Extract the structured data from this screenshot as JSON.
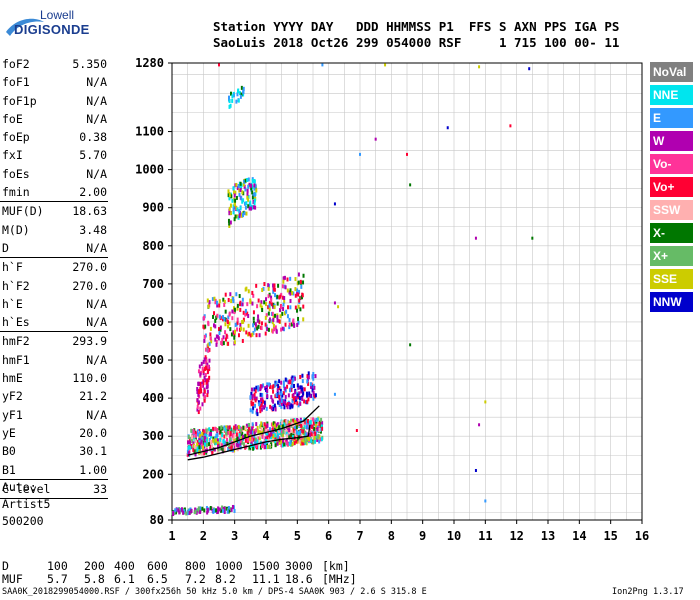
{
  "logo": {
    "top": "Lowell",
    "bottom": "DIGISONDE"
  },
  "header": {
    "line1": "Station YYYY DAY   DDD HHMMSS P1  FFS S AXN PPS IGA PS",
    "line2": "SaoLuis 2018 Oct26 299 054000 RSF     1 715 100 00- 11"
  },
  "params": [
    {
      "label": "foF2",
      "value": "5.350"
    },
    {
      "label": "foF1",
      "value": "N/A"
    },
    {
      "label": "foF1p",
      "value": "N/A"
    },
    {
      "label": "foE",
      "value": "N/A"
    },
    {
      "label": "foEp",
      "value": "0.38"
    },
    {
      "label": "fxI",
      "value": "5.70"
    },
    {
      "label": "foEs",
      "value": "N/A"
    },
    {
      "label": "fmin",
      "value": "2.00"
    },
    {
      "sep": true
    },
    {
      "label": "MUF(D)",
      "value": "18.63"
    },
    {
      "label": "M(D)",
      "value": "3.48"
    },
    {
      "label": "D",
      "value": "N/A"
    },
    {
      "sep": true
    },
    {
      "label": "h`F",
      "value": "270.0"
    },
    {
      "label": "h`F2",
      "value": "270.0"
    },
    {
      "label": "h`E",
      "value": "N/A"
    },
    {
      "label": "h`Es",
      "value": "N/A"
    },
    {
      "sep": true
    },
    {
      "label": "hmF2",
      "value": "293.9"
    },
    {
      "label": "hmF1",
      "value": "N/A"
    },
    {
      "label": "hmE",
      "value": "110.0"
    },
    {
      "label": "yF2",
      "value": "21.2"
    },
    {
      "label": "yF1",
      "value": "N/A"
    },
    {
      "label": "yE",
      "value": "20.0"
    },
    {
      "label": "B0",
      "value": "30.1"
    },
    {
      "label": "B1",
      "value": "1.00"
    },
    {
      "sep": true
    },
    {
      "label": "C-level",
      "value": "33"
    },
    {
      "sep": true
    }
  ],
  "auto": {
    "line1": "Auto:",
    "line2": "Artist5",
    "line3": "500200"
  },
  "muf_table": {
    "d_label": "D",
    "muf_label": "MUF",
    "d_values": [
      "100",
      "200",
      "400",
      "600",
      "800",
      "1000",
      "1500",
      "3000",
      "[km]"
    ],
    "muf_values": [
      "5.7",
      "5.8",
      "6.1",
      "6.5",
      "7.2",
      "8.2",
      "11.1",
      "18.6",
      "[MHz]"
    ]
  },
  "footer": {
    "left": "SAA0K_2018299054000.RSF / 300fx256h 50 kHz 5.0 km / DPS-4 SAA0K 903 / 2.6 S 315.8 E",
    "right": "Ion2Png 1.3.17"
  },
  "legend": [
    {
      "label": "NoVal",
      "color": "#808080"
    },
    {
      "label": "NNE",
      "color": "#00e5ee"
    },
    {
      "label": "E",
      "color": "#3399ff"
    },
    {
      "label": "W",
      "color": "#b000b0"
    },
    {
      "label": "Vo-",
      "color": "#ff3399"
    },
    {
      "label": "Vo+",
      "color": "#ff0033"
    },
    {
      "label": "SSW",
      "color": "#ffb0b0"
    },
    {
      "label": "X-",
      "color": "#007700"
    },
    {
      "label": "X+",
      "color": "#66bb66"
    },
    {
      "label": "SSE",
      "color": "#cccc00"
    },
    {
      "label": "NNW",
      "color": "#0000cc"
    }
  ],
  "chart_data": {
    "type": "scatter",
    "title": "",
    "xlabel": "",
    "ylabel": "",
    "xlim": [
      1,
      16
    ],
    "ylim": [
      80,
      1280
    ],
    "x_ticks": [
      1,
      2,
      3,
      4,
      5,
      6,
      7,
      8,
      9,
      10,
      11,
      12,
      13,
      14,
      15,
      16
    ],
    "y_ticks": [
      80,
      200,
      300,
      400,
      500,
      600,
      700,
      800,
      900,
      1000,
      1100,
      1280
    ],
    "grid": true,
    "legend_position": "right",
    "trace_color": "#000000",
    "clusters": [
      {
        "name": "F-trace-main",
        "x": [
          1.5,
          5.8
        ],
        "y": [
          250,
          350
        ],
        "count": 900,
        "colors": [
          "#ff0033",
          "#ff3399",
          "#b000b0",
          "#3399ff",
          "#00e5ee",
          "#cccc00",
          "#007700",
          "#66bb66",
          "#ffb0b0"
        ]
      },
      {
        "name": "F-trace-upper",
        "x": [
          3.5,
          5.6
        ],
        "y": [
          350,
          470
        ],
        "count": 220,
        "colors": [
          "#0000cc",
          "#ff0033",
          "#3399ff",
          "#b000b0"
        ]
      },
      {
        "name": "second-hop",
        "x": [
          2.0,
          5.2
        ],
        "y": [
          520,
          730
        ],
        "count": 320,
        "colors": [
          "#cccc00",
          "#b000b0",
          "#ff3399",
          "#3399ff",
          "#007700",
          "#ff0033"
        ]
      },
      {
        "name": "third-hop",
        "x": [
          2.8,
          3.7
        ],
        "y": [
          850,
          1000
        ],
        "count": 130,
        "colors": [
          "#007700",
          "#3399ff",
          "#cccc00",
          "#00e5ee",
          "#b000b0"
        ]
      },
      {
        "name": "low-sporadic",
        "x": [
          1.0,
          3.0
        ],
        "y": [
          95,
          115
        ],
        "count": 90,
        "colors": [
          "#007700",
          "#66bb66",
          "#b000b0",
          "#3399ff"
        ]
      },
      {
        "name": "band-2MHz",
        "x": [
          1.8,
          2.2
        ],
        "y": [
          350,
          540
        ],
        "count": 80,
        "colors": [
          "#b000b0",
          "#ff3399",
          "#ff0033"
        ]
      },
      {
        "name": "band-3MHz",
        "x": [
          2.8,
          3.3
        ],
        "y": [
          1160,
          1220
        ],
        "count": 25,
        "colors": [
          "#3399ff",
          "#007700",
          "#00e5ee"
        ]
      },
      {
        "name": "isolated",
        "points": [
          [
            6.2,
            910
          ],
          [
            6.2,
            650
          ],
          [
            6.3,
            640
          ],
          [
            7.0,
            1040
          ],
          [
            8.5,
            1040
          ],
          [
            8.6,
            960
          ],
          [
            9.8,
            1110
          ],
          [
            10.7,
            820
          ],
          [
            10.8,
            1270
          ],
          [
            11.0,
            130
          ],
          [
            11.8,
            1115
          ],
          [
            12.5,
            820
          ],
          [
            12.4,
            1265
          ],
          [
            10.8,
            330
          ],
          [
            11.0,
            390
          ],
          [
            6.2,
            410
          ],
          [
            6.9,
            315
          ],
          [
            8.6,
            540
          ],
          [
            10.7,
            210
          ],
          [
            7.5,
            1080
          ],
          [
            7.8,
            1275
          ],
          [
            5.8,
            1275
          ],
          [
            2.5,
            1275
          ]
        ],
        "colors": [
          "#0000cc",
          "#b000b0",
          "#cccc00",
          "#3399ff",
          "#ff0033",
          "#007700"
        ]
      }
    ],
    "virtual_height_trace": [
      [
        1.5,
        238
      ],
      [
        2.0,
        245
      ],
      [
        2.5,
        255
      ],
      [
        3.0,
        265
      ],
      [
        3.5,
        275
      ],
      [
        4.0,
        285
      ],
      [
        4.5,
        292
      ],
      [
        5.0,
        296
      ],
      [
        5.35,
        300
      ],
      [
        5.4,
        330
      ]
    ],
    "ordinary_x_trace": [
      [
        1.5,
        250
      ],
      [
        2.5,
        270
      ],
      [
        3.5,
        300
      ],
      [
        4.5,
        320
      ],
      [
        5.2,
        340
      ],
      [
        5.7,
        380
      ]
    ]
  }
}
